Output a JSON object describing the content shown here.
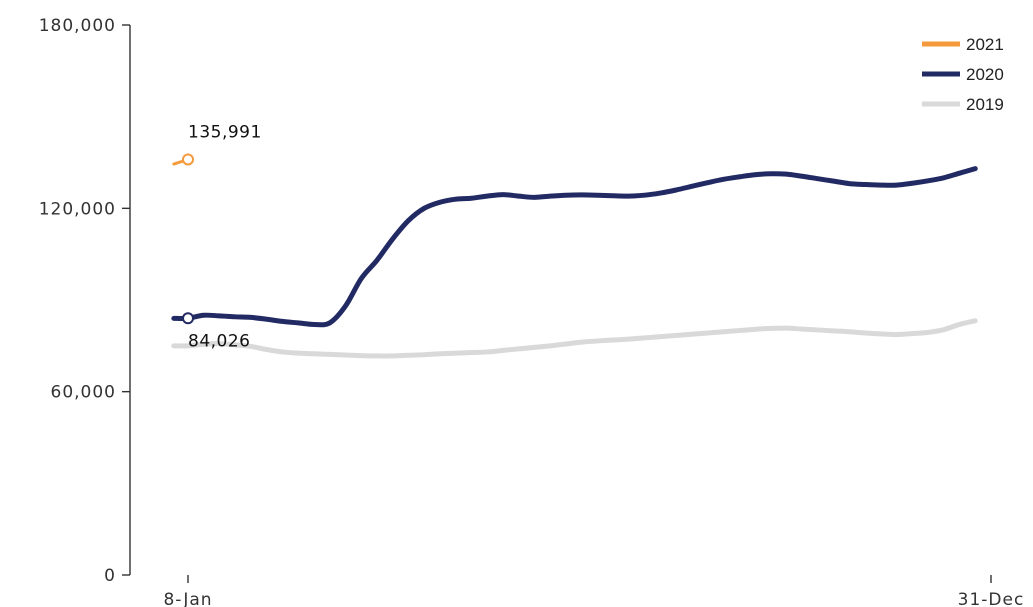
{
  "chart_data": {
    "type": "line",
    "title": "",
    "xlabel": "",
    "ylabel": "",
    "ylim": [
      0,
      180000
    ],
    "y_ticks": [
      0,
      60000,
      120000,
      180000
    ],
    "y_tick_labels": [
      "0",
      "60,000",
      "120,000",
      "180,000"
    ],
    "x_tick_labels": [
      "8-Jan",
      "31-Dec"
    ],
    "x_domain_weeks": [
      0,
      51
    ],
    "legend_position": "top-right",
    "series": [
      {
        "name": "2021",
        "color": "#f59a3c",
        "stroke_width": 3,
        "points": [
          [
            -0.9,
            134500
          ],
          [
            0,
            135991
          ]
        ],
        "marker": {
          "x": 0,
          "y": 135991,
          "label": "135,991",
          "label_position": "above"
        }
      },
      {
        "name": "2020",
        "color": "#222a63",
        "stroke_width": 5,
        "points": [
          [
            -0.9,
            84000
          ],
          [
            0,
            84026
          ],
          [
            1,
            85000
          ],
          [
            2,
            84800
          ],
          [
            3,
            84500
          ],
          [
            4,
            84300
          ],
          [
            5,
            83700
          ],
          [
            6,
            83000
          ],
          [
            7,
            82500
          ],
          [
            8,
            82000
          ],
          [
            9,
            82500
          ],
          [
            10,
            88000
          ],
          [
            11,
            97000
          ],
          [
            12,
            103000
          ],
          [
            13,
            110000
          ],
          [
            14,
            116000
          ],
          [
            15,
            120000
          ],
          [
            16,
            122000
          ],
          [
            17,
            123000
          ],
          [
            18,
            123300
          ],
          [
            19,
            124000
          ],
          [
            20,
            124500
          ],
          [
            21,
            124000
          ],
          [
            22,
            123600
          ],
          [
            23,
            124000
          ],
          [
            24,
            124300
          ],
          [
            25,
            124400
          ],
          [
            26,
            124300
          ],
          [
            27,
            124100
          ],
          [
            28,
            124000
          ],
          [
            29,
            124300
          ],
          [
            30,
            125000
          ],
          [
            31,
            126000
          ],
          [
            32,
            127200
          ],
          [
            33,
            128400
          ],
          [
            34,
            129500
          ],
          [
            35,
            130300
          ],
          [
            36,
            131000
          ],
          [
            37,
            131300
          ],
          [
            38,
            131200
          ],
          [
            39,
            130500
          ],
          [
            40,
            129700
          ],
          [
            41,
            128900
          ],
          [
            42,
            128100
          ],
          [
            43,
            127800
          ],
          [
            44,
            127600
          ],
          [
            45,
            127600
          ],
          [
            46,
            128200
          ],
          [
            47,
            129000
          ],
          [
            48,
            130000
          ],
          [
            49,
            131500
          ],
          [
            50,
            133000
          ]
        ],
        "marker": {
          "x": 0,
          "y": 84026,
          "label": "84,026",
          "label_position": "below"
        }
      },
      {
        "name": "2019",
        "color": "#d9d9d9",
        "stroke_width": 5,
        "points": [
          [
            -0.9,
            75000
          ],
          [
            0,
            75000
          ],
          [
            1,
            75500
          ],
          [
            2,
            75700
          ],
          [
            3,
            75300
          ],
          [
            4,
            74800
          ],
          [
            5,
            73800
          ],
          [
            6,
            73000
          ],
          [
            7,
            72600
          ],
          [
            8,
            72400
          ],
          [
            9,
            72200
          ],
          [
            10,
            72000
          ],
          [
            11,
            71800
          ],
          [
            12,
            71700
          ],
          [
            13,
            71700
          ],
          [
            14,
            71900
          ],
          [
            15,
            72100
          ],
          [
            16,
            72400
          ],
          [
            17,
            72600
          ],
          [
            18,
            72800
          ],
          [
            19,
            73000
          ],
          [
            20,
            73500
          ],
          [
            21,
            74000
          ],
          [
            22,
            74500
          ],
          [
            23,
            75000
          ],
          [
            24,
            75600
          ],
          [
            25,
            76200
          ],
          [
            26,
            76600
          ],
          [
            27,
            76900
          ],
          [
            28,
            77200
          ],
          [
            29,
            77600
          ],
          [
            30,
            78000
          ],
          [
            31,
            78400
          ],
          [
            32,
            78800
          ],
          [
            33,
            79200
          ],
          [
            34,
            79600
          ],
          [
            35,
            80000
          ],
          [
            36,
            80400
          ],
          [
            37,
            80700
          ],
          [
            38,
            80800
          ],
          [
            39,
            80500
          ],
          [
            40,
            80200
          ],
          [
            41,
            79900
          ],
          [
            42,
            79600
          ],
          [
            43,
            79200
          ],
          [
            44,
            78900
          ],
          [
            45,
            78700
          ],
          [
            46,
            79000
          ],
          [
            47,
            79400
          ],
          [
            48,
            80300
          ],
          [
            49,
            82000
          ],
          [
            50,
            83200
          ]
        ]
      }
    ]
  }
}
